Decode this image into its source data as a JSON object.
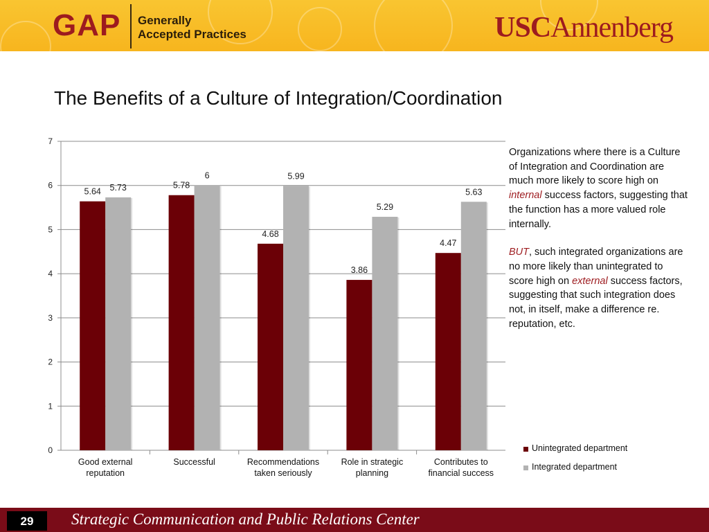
{
  "header": {
    "gap_word": "GAP",
    "gap_tagline_line1": "Generally",
    "gap_tagline_line2": "Accepted Practices",
    "usc_part": "USC",
    "annenberg_part": "Annenberg"
  },
  "slide": {
    "title": "The Benefits of a Culture of Integration/Coordination"
  },
  "side_text": {
    "p1_a": "Organizations where there is a Culture of Integration and Coordination are much more likely to score high on ",
    "p1_em": "internal",
    "p1_b": "  success factors, suggesting that the function has a more valued role internally.",
    "p2_em": "BUT",
    "p2_a": ", such integrated organizations are no more likely than unintegrated to score high on ",
    "p2_em2": "external",
    "p2_b": " success factors, suggesting that such integration does not, in itself, make a difference re. reputation, etc."
  },
  "chart_data": {
    "type": "bar",
    "categories": [
      [
        "Good external",
        "reputation"
      ],
      [
        "Successful"
      ],
      [
        "Recommendations",
        "taken seriously"
      ],
      [
        "Role in strategic",
        "planning"
      ],
      [
        "Contributes to",
        "financial success"
      ]
    ],
    "series": [
      {
        "name": "Unintegrated department",
        "values": [
          5.64,
          5.78,
          4.68,
          3.86,
          4.47
        ],
        "labels": [
          "5.64",
          "5.78",
          "4.68",
          "3.86",
          "4.47"
        ],
        "color": "#6b0006"
      },
      {
        "name": "Integrated department",
        "values": [
          5.73,
          6,
          5.99,
          5.29,
          5.63
        ],
        "labels": [
          "5.73",
          "6",
          "5.99",
          "5.29",
          "5.63"
        ],
        "color": "#b2b2b2"
      }
    ],
    "ylim": [
      0,
      7
    ],
    "yticks": [
      "0",
      "1",
      "2",
      "3",
      "4",
      "5",
      "6",
      "7"
    ],
    "grid": true,
    "legend_position": "bottom-right"
  },
  "footer": {
    "page_number": "29",
    "text": "Strategic Communication and Public Relations Center"
  },
  "colors": {
    "header_gold": "#f8bd2a",
    "brand_cardinal": "#9d1b1f",
    "footer_bar": "#7a0c18"
  }
}
